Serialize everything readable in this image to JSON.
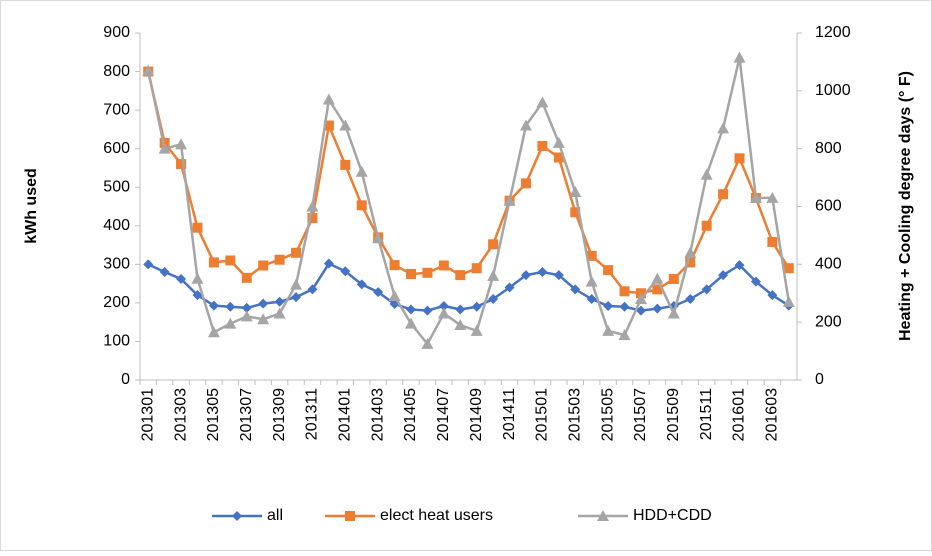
{
  "chart_data": {
    "type": "line",
    "ylabel": "kWh used",
    "y2label": "Heating + Cooling degree days (° F)",
    "categories": [
      "201301",
      null,
      "201303",
      null,
      "201305",
      null,
      "201307",
      null,
      "201309",
      null,
      "201311",
      null,
      "201401",
      null,
      "201403",
      null,
      "201405",
      null,
      "201407",
      null,
      "201409",
      null,
      "201411",
      null,
      "201501",
      null,
      "201503",
      null,
      "201505",
      null,
      "201507",
      null,
      "201509",
      null,
      "201511",
      null,
      "201601",
      null,
      "201603",
      null
    ],
    "series": [
      {
        "name": "all",
        "color": "#4472c4",
        "marker": "diamond",
        "values": [
          300,
          280,
          262,
          220,
          193,
          190,
          187,
          198,
          203,
          215,
          235,
          302,
          282,
          248,
          228,
          197,
          183,
          180,
          192,
          183,
          190,
          210,
          240,
          272,
          280,
          272,
          235,
          210,
          192,
          190,
          180,
          185,
          192,
          210,
          235,
          272,
          298,
          255,
          220,
          193
        ]
      },
      {
        "name": "elect heat users",
        "color": "#ed7d31",
        "marker": "square",
        "values": [
          800,
          615,
          560,
          395,
          305,
          310,
          265,
          297,
          312,
          330,
          420,
          660,
          558,
          453,
          370,
          298,
          275,
          278,
          297,
          272,
          290,
          352,
          465,
          510,
          607,
          577,
          435,
          322,
          285,
          230,
          225,
          235,
          262,
          305,
          400,
          482,
          575,
          472,
          358,
          290
        ]
      },
      {
        "name": "HDD+CDD",
        "color": "#a5a5a5",
        "marker": "triangle",
        "axis": "y2",
        "values": [
          1070,
          800,
          815,
          350,
          165,
          195,
          220,
          210,
          230,
          330,
          600,
          970,
          880,
          720,
          490,
          290,
          195,
          125,
          230,
          190,
          170,
          360,
          620,
          880,
          960,
          820,
          650,
          340,
          170,
          155,
          280,
          350,
          230,
          440,
          710,
          870,
          1115,
          630,
          630,
          270
        ]
      }
    ],
    "ylim": [
      0,
      900
    ],
    "yticks": [
      0,
      100,
      200,
      300,
      400,
      500,
      600,
      700,
      800,
      900
    ],
    "y2lim": [
      0,
      1200
    ],
    "y2ticks": [
      0,
      200,
      400,
      600,
      800,
      1000,
      1200
    ],
    "grid": false,
    "legend": "bottom"
  }
}
